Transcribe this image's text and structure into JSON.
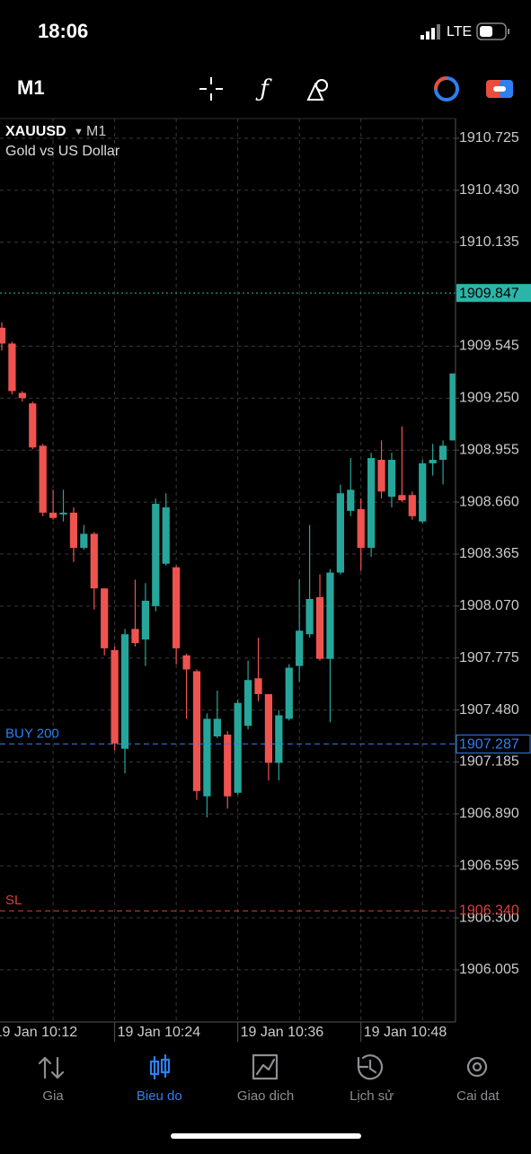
{
  "status_bar": {
    "time": "18:06",
    "network": "LTE"
  },
  "toolbar": {
    "timeframe": "M1"
  },
  "chart_data": {
    "type": "candlestick",
    "symbol": "XAUUSD",
    "timeframe": "M1",
    "description": "Gold vs US Dollar",
    "up_color": "#26a69a",
    "down_color": "#ef5350",
    "ohlc": [
      [
        1909.65,
        1909.68,
        1909.52,
        1909.56
      ],
      [
        1909.56,
        1909.57,
        1909.27,
        1909.29
      ],
      [
        1909.28,
        1909.29,
        1909.23,
        1909.25
      ],
      [
        1909.22,
        1909.23,
        1908.96,
        1908.97
      ],
      [
        1908.98,
        1908.99,
        1908.58,
        1908.6
      ],
      [
        1908.6,
        1908.73,
        1908.56,
        1908.57
      ],
      [
        1908.59,
        1908.73,
        1908.55,
        1908.6
      ],
      [
        1908.6,
        1908.63,
        1908.32,
        1908.4
      ],
      [
        1908.4,
        1908.53,
        1908.39,
        1908.48
      ],
      [
        1908.48,
        1908.49,
        1908.05,
        1908.17
      ],
      [
        1908.17,
        1908.17,
        1907.79,
        1907.83
      ],
      [
        1907.82,
        1907.84,
        1907.25,
        1907.29
      ],
      [
        1907.26,
        1907.94,
        1907.12,
        1907.91
      ],
      [
        1907.94,
        1908.22,
        1907.84,
        1907.86
      ],
      [
        1907.88,
        1908.2,
        1907.73,
        1908.1
      ],
      [
        1908.07,
        1908.68,
        1908.04,
        1908.65
      ],
      [
        1908.31,
        1908.71,
        1908.3,
        1908.63
      ],
      [
        1908.29,
        1908.3,
        1907.74,
        1907.83
      ],
      [
        1907.79,
        1907.8,
        1907.43,
        1907.71
      ],
      [
        1907.7,
        1907.71,
        1906.97,
        1907.02
      ],
      [
        1906.99,
        1907.46,
        1906.87,
        1907.43
      ],
      [
        1907.33,
        1907.59,
        1907.32,
        1907.43
      ],
      [
        1907.34,
        1907.36,
        1906.92,
        1906.99
      ],
      [
        1907.01,
        1907.54,
        1907.0,
        1907.52
      ],
      [
        1907.39,
        1907.76,
        1907.37,
        1907.65
      ],
      [
        1907.66,
        1907.89,
        1907.53,
        1907.57
      ],
      [
        1907.57,
        1907.57,
        1907.08,
        1907.18
      ],
      [
        1907.18,
        1907.48,
        1907.08,
        1907.45
      ],
      [
        1907.43,
        1907.74,
        1907.42,
        1907.72
      ],
      [
        1907.73,
        1908.22,
        1907.64,
        1907.93
      ],
      [
        1907.91,
        1908.53,
        1907.89,
        1908.11
      ],
      [
        1908.12,
        1908.25,
        1907.76,
        1907.77
      ],
      [
        1907.77,
        1908.28,
        1907.41,
        1908.26
      ],
      [
        1908.26,
        1908.76,
        1908.25,
        1908.71
      ],
      [
        1908.61,
        1908.91,
        1908.58,
        1908.73
      ],
      [
        1908.62,
        1908.68,
        1908.27,
        1908.4
      ],
      [
        1908.4,
        1908.94,
        1908.35,
        1908.91
      ],
      [
        1908.9,
        1909.01,
        1908.68,
        1908.72
      ],
      [
        1908.69,
        1908.94,
        1908.63,
        1908.9
      ],
      [
        1908.7,
        1909.09,
        1908.66,
        1908.67
      ],
      [
        1908.7,
        1908.72,
        1908.56,
        1908.58
      ],
      [
        1908.55,
        1908.9,
        1908.54,
        1908.88
      ],
      [
        1908.88,
        1908.99,
        1908.81,
        1908.9
      ],
      [
        1908.9,
        1909.01,
        1908.76,
        1908.98
      ],
      [
        1909.01,
        1909.39,
        1909.01,
        1909.39
      ]
    ],
    "xlim": [
      -0.175,
      44.22
    ],
    "xticks": [
      {
        "value": -1,
        "label": "19 Jan 10:12"
      },
      {
        "value": 11,
        "label": "19 Jan 10:24"
      },
      {
        "value": 23,
        "label": "19 Jan 10:36"
      },
      {
        "value": 35,
        "label": "19 Jan 10:48"
      }
    ],
    "ylim": [
      1905.709,
      1910.837
    ],
    "yticks": [
      1910.725,
      {
        "value": 1910.43,
        "label": "1910.430"
      },
      1910.135,
      1909.545,
      {
        "value": 1909.25,
        "label": "1909.250"
      },
      1908.955,
      {
        "value": 1908.66,
        "label": "1908.660"
      },
      1908.365,
      {
        "value": 1908.07,
        "label": "1908.070"
      },
      1907.775,
      {
        "value": 1907.48,
        "label": "1907.480"
      },
      1907.185,
      {
        "value": 1906.89,
        "label": "1906.890"
      },
      1906.595,
      {
        "value": 1906.3,
        "label": "1906.300"
      },
      1906.005
    ],
    "grid": true,
    "levels": [
      {
        "value": 1909.847,
        "color": "#2bb5a8",
        "style": "bid"
      },
      {
        "label": "BUY 200",
        "value": 1907.287,
        "color": "#2f7ff0",
        "style": "order"
      },
      {
        "label": "SL",
        "value": 1906.34,
        "value_label": "1906.340",
        "color": "#d9413c",
        "style": "stop"
      }
    ]
  },
  "tab_bar": {
    "active": 1,
    "items": [
      {
        "label": "Gia"
      },
      {
        "label": "Bieu do"
      },
      {
        "label": "Giao dich"
      },
      {
        "label": "Lịch sử"
      },
      {
        "label": "Cai dat"
      }
    ]
  }
}
